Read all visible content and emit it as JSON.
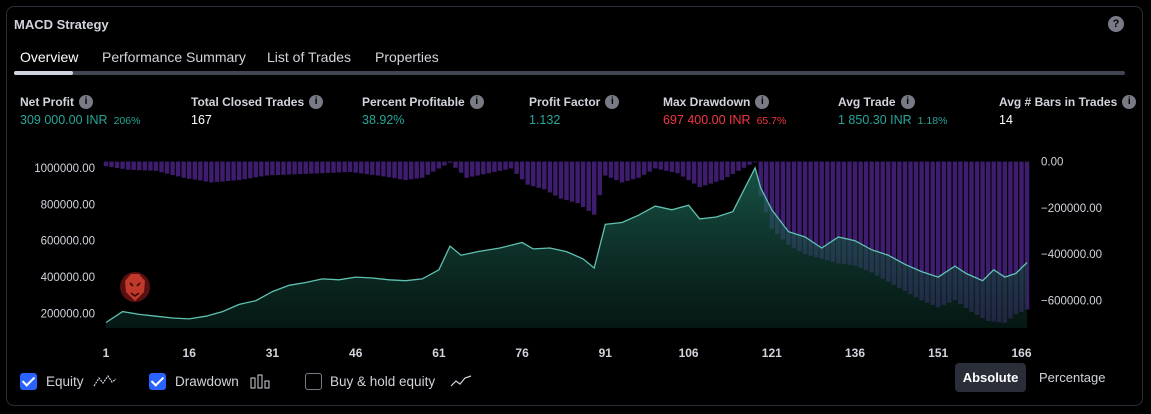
{
  "title": "MACD Strategy",
  "help_symbol": "?",
  "tabs": [
    {
      "label": "Overview",
      "active": true
    },
    {
      "label": "Performance Summary",
      "active": false
    },
    {
      "label": "List of Trades",
      "active": false
    },
    {
      "label": "Properties",
      "active": false
    }
  ],
  "info_symbol": "i",
  "stats": {
    "net_profit": {
      "label": "Net Profit",
      "value": "309 000.00 INR",
      "pct": "206%"
    },
    "total_closed_trades": {
      "label": "Total Closed Trades",
      "value": "167"
    },
    "percent_profitable": {
      "label": "Percent Profitable",
      "value": "38.92%"
    },
    "profit_factor": {
      "label": "Profit Factor",
      "value": "1.132"
    },
    "max_drawdown": {
      "label": "Max Drawdown",
      "value": "697 400.00 INR",
      "pct": "65.7%"
    },
    "avg_trade": {
      "label": "Avg Trade",
      "value": "1 850.30 INR",
      "pct": "1.18%"
    },
    "avg_bars": {
      "label": "Avg # Bars in Trades",
      "value": "14"
    }
  },
  "colors": {
    "equity_line": "#5ec2b3",
    "drawdown_bar": "#3f1d6e",
    "positive": "#26a69a",
    "negative": "#f23645",
    "checkbox_on": "#2962ff"
  },
  "chart_data": {
    "type": "area",
    "x_ticks": [
      "1",
      "16",
      "31",
      "46",
      "61",
      "76",
      "91",
      "106",
      "121",
      "136",
      "151",
      "166"
    ],
    "y_left_ticks": [
      "1000000.00",
      "800000.00",
      "600000.00",
      "400000.00",
      "200000.00"
    ],
    "y_right_ticks": [
      "0.00",
      "−200000.00",
      "−400000.00",
      "−600000.00"
    ],
    "ylim_left": [
      120000,
      1060000
    ],
    "ylim_right": [
      -720000,
      20000
    ],
    "xlim": [
      1,
      167
    ],
    "series": [
      {
        "name": "Equity",
        "type": "area",
        "points": [
          [
            1,
            150000
          ],
          [
            4,
            210000
          ],
          [
            7,
            195000
          ],
          [
            10,
            185000
          ],
          [
            13,
            175000
          ],
          [
            16,
            170000
          ],
          [
            19,
            185000
          ],
          [
            22,
            210000
          ],
          [
            25,
            250000
          ],
          [
            28,
            270000
          ],
          [
            31,
            320000
          ],
          [
            34,
            355000
          ],
          [
            37,
            370000
          ],
          [
            40,
            390000
          ],
          [
            43,
            385000
          ],
          [
            46,
            400000
          ],
          [
            49,
            395000
          ],
          [
            52,
            385000
          ],
          [
            55,
            380000
          ],
          [
            58,
            390000
          ],
          [
            61,
            440000
          ],
          [
            63,
            570000
          ],
          [
            65,
            520000
          ],
          [
            68,
            540000
          ],
          [
            72,
            560000
          ],
          [
            76,
            590000
          ],
          [
            78,
            555000
          ],
          [
            81,
            560000
          ],
          [
            84,
            540000
          ],
          [
            87,
            500000
          ],
          [
            89,
            450000
          ],
          [
            91,
            690000
          ],
          [
            94,
            700000
          ],
          [
            97,
            740000
          ],
          [
            100,
            790000
          ],
          [
            103,
            770000
          ],
          [
            106,
            795000
          ],
          [
            108,
            720000
          ],
          [
            111,
            730000
          ],
          [
            114,
            760000
          ],
          [
            116,
            880000
          ],
          [
            118,
            1000000
          ],
          [
            119,
            890000
          ],
          [
            121,
            770000
          ],
          [
            124,
            650000
          ],
          [
            127,
            620000
          ],
          [
            130,
            560000
          ],
          [
            133,
            620000
          ],
          [
            136,
            600000
          ],
          [
            139,
            550000
          ],
          [
            142,
            520000
          ],
          [
            145,
            470000
          ],
          [
            148,
            430000
          ],
          [
            151,
            400000
          ],
          [
            154,
            460000
          ],
          [
            156,
            420000
          ],
          [
            159,
            380000
          ],
          [
            161,
            440000
          ],
          [
            163,
            400000
          ],
          [
            165,
            420000
          ],
          [
            167,
            480000
          ]
        ]
      },
      {
        "name": "Drawdown",
        "type": "bar",
        "points": [
          [
            1,
            -20000
          ],
          [
            5,
            -35000
          ],
          [
            10,
            -40000
          ],
          [
            15,
            -70000
          ],
          [
            20,
            -90000
          ],
          [
            25,
            -80000
          ],
          [
            30,
            -60000
          ],
          [
            35,
            -55000
          ],
          [
            40,
            -50000
          ],
          [
            45,
            -45000
          ],
          [
            50,
            -60000
          ],
          [
            55,
            -80000
          ],
          [
            58,
            -70000
          ],
          [
            61,
            -30000
          ],
          [
            63,
            -5000
          ],
          [
            66,
            -70000
          ],
          [
            70,
            -50000
          ],
          [
            74,
            -30000
          ],
          [
            77,
            -100000
          ],
          [
            80,
            -120000
          ],
          [
            83,
            -160000
          ],
          [
            86,
            -180000
          ],
          [
            89,
            -230000
          ],
          [
            91,
            -60000
          ],
          [
            94,
            -90000
          ],
          [
            97,
            -70000
          ],
          [
            100,
            -30000
          ],
          [
            104,
            -50000
          ],
          [
            108,
            -110000
          ],
          [
            112,
            -80000
          ],
          [
            115,
            -40000
          ],
          [
            118,
            0
          ],
          [
            119,
            -150000
          ],
          [
            121,
            -290000
          ],
          [
            124,
            -360000
          ],
          [
            127,
            -400000
          ],
          [
            130,
            -420000
          ],
          [
            133,
            -440000
          ],
          [
            136,
            -450000
          ],
          [
            139,
            -480000
          ],
          [
            142,
            -520000
          ],
          [
            145,
            -560000
          ],
          [
            148,
            -600000
          ],
          [
            151,
            -630000
          ],
          [
            154,
            -600000
          ],
          [
            157,
            -650000
          ],
          [
            160,
            -690000
          ],
          [
            163,
            -697400
          ],
          [
            165,
            -660000
          ],
          [
            167,
            -640000
          ]
        ]
      }
    ]
  },
  "legend": {
    "equity": {
      "label": "Equity",
      "checked": true
    },
    "drawdown": {
      "label": "Drawdown",
      "checked": true
    },
    "buy_hold": {
      "label": "Buy & hold equity",
      "checked": false
    }
  },
  "mode": {
    "absolute": "Absolute",
    "percentage": "Percentage",
    "selected": "Absolute"
  }
}
